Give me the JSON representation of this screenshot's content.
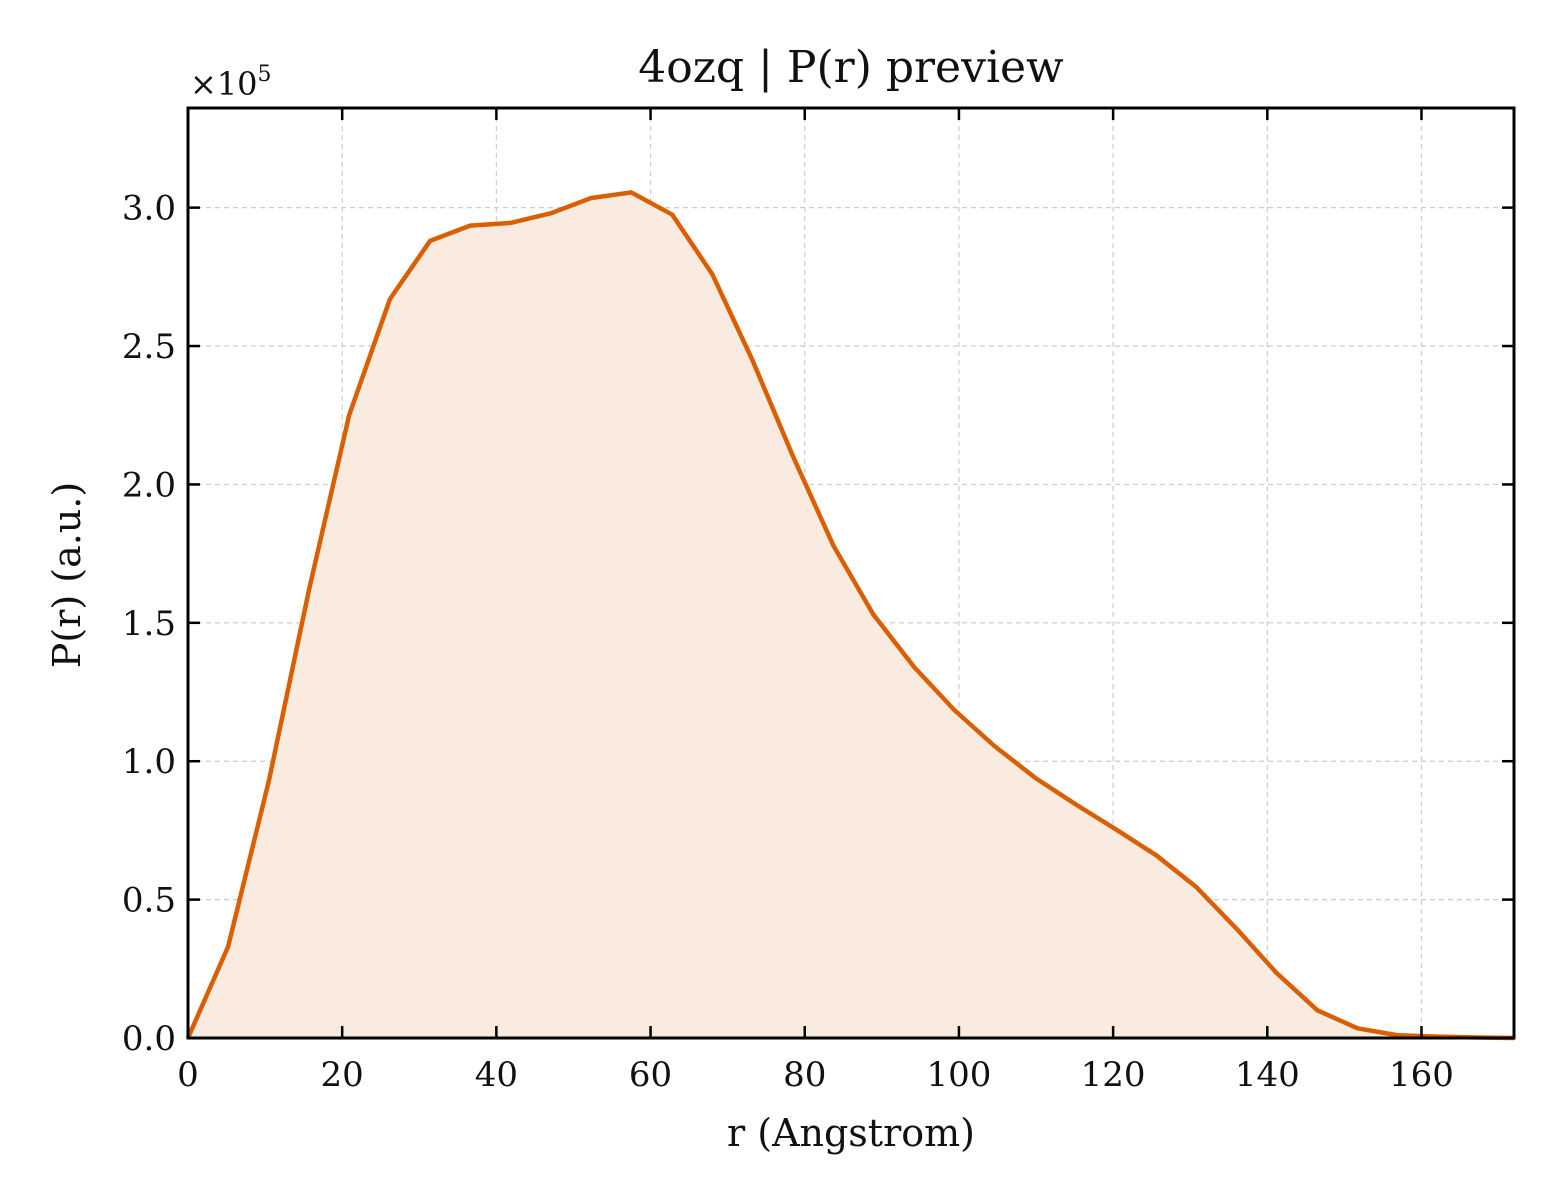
{
  "chart_data": {
    "type": "area",
    "title": "4ozq | P(r) preview",
    "xlabel": "r (Angstrom)",
    "ylabel": "P(r) (a.u.)",
    "y_scale_prefix": "×10",
    "y_scale_exponent": "5",
    "xlim": [
      0,
      172
    ],
    "ylim": [
      0,
      3.36
    ],
    "xticks": [
      0,
      20,
      40,
      60,
      80,
      100,
      120,
      140,
      160
    ],
    "xtick_labels": [
      "0",
      "20",
      "40",
      "60",
      "80",
      "100",
      "120",
      "140",
      "160"
    ],
    "yticks": [
      0,
      0.5,
      1.0,
      1.5,
      2.0,
      2.5,
      3.0
    ],
    "ytick_labels": [
      "0.0",
      "0.5",
      "1.0",
      "1.5",
      "2.0",
      "2.5",
      "3.0"
    ],
    "grid": true,
    "line_color": "#d95f02",
    "fill_color": "#f9ebe0",
    "x": [
      0,
      5.2,
      10.5,
      15.7,
      20.9,
      26.2,
      31.4,
      36.6,
      41.9,
      47.1,
      52.3,
      57.5,
      62.8,
      68.0,
      73.2,
      78.5,
      83.7,
      88.9,
      94.2,
      99.4,
      104.6,
      109.9,
      115.1,
      120.3,
      125.6,
      130.8,
      136.0,
      141.2,
      146.5,
      151.7,
      156.9,
      162.2,
      167.4,
      172.0
    ],
    "values": [
      0.0,
      0.33,
      0.93,
      1.62,
      2.25,
      2.67,
      2.88,
      2.935,
      2.945,
      2.98,
      3.035,
      3.055,
      2.975,
      2.76,
      2.45,
      2.1,
      1.78,
      1.53,
      1.34,
      1.185,
      1.055,
      0.94,
      0.845,
      0.755,
      0.66,
      0.545,
      0.395,
      0.235,
      0.1,
      0.035,
      0.01,
      0.005,
      0.002,
      0.0
    ]
  }
}
